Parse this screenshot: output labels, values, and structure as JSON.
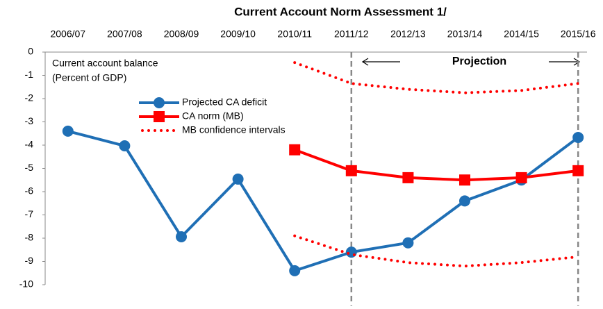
{
  "chart_data": {
    "type": "line",
    "title": "Current Account Norm Assessment  1/",
    "annotations": [
      "Current account balance",
      "(Percent of GDP)",
      "Projection"
    ],
    "categories": [
      "2006/07",
      "2007/08",
      "2008/09",
      "2009/10",
      "2010/11",
      "2011/12",
      "2012/13",
      "2013/14",
      "2014/15",
      "2015/16"
    ],
    "series": [
      {
        "name": "Projected CA deficit",
        "color": "#1f6fb5",
        "marker": "circle",
        "values": [
          -3.4,
          -4.03,
          -7.94,
          -5.46,
          -9.4,
          -8.6,
          -8.2,
          -6.4,
          -5.5,
          -3.67
        ]
      },
      {
        "name": "CA norm (MB)",
        "color": "#ff0000",
        "marker": "square",
        "values": [
          null,
          null,
          null,
          null,
          -4.2,
          -5.1,
          -5.4,
          -5.5,
          -5.4,
          -5.1
        ]
      },
      {
        "name": "MB confidence intervals",
        "color": "#ff0000",
        "dotted": true,
        "values": [
          null,
          null,
          null,
          null,
          -0.45,
          -1.35,
          -1.6,
          -1.75,
          -1.65,
          -1.35
        ]
      },
      {
        "color": "#ff0000",
        "dotted": true,
        "values": [
          null,
          null,
          null,
          null,
          -7.9,
          -8.7,
          -9.05,
          -9.2,
          -9.05,
          -8.8
        ]
      }
    ],
    "ylim": [
      -10,
      0
    ],
    "yticks": [
      0,
      -1,
      -2,
      -3,
      -4,
      -5,
      -6,
      -7,
      -8,
      -9,
      -10
    ],
    "vlines": [
      5,
      9
    ]
  }
}
